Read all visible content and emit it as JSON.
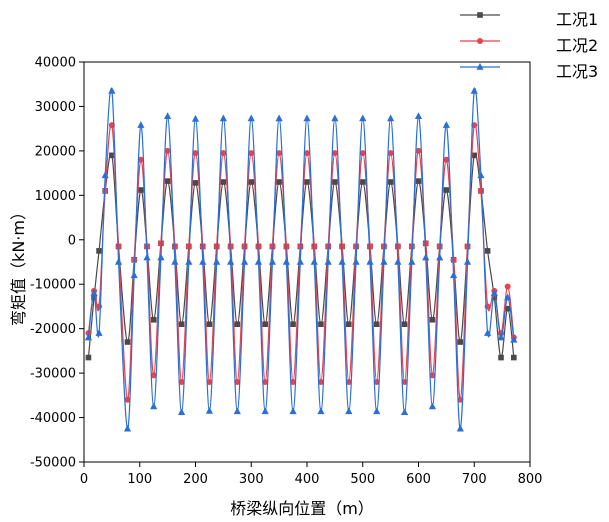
{
  "chart_data": {
    "type": "line",
    "xlabel": "桥梁纵向位置（m）",
    "ylabel": "弯矩值（kN·m）",
    "xlim": [
      0,
      800
    ],
    "ylim": [
      -50000,
      40000
    ],
    "xticks": [
      "0",
      "100",
      "200",
      "300",
      "400",
      "500",
      "600",
      "700",
      "800"
    ],
    "yticks": [
      "-50000",
      "-40000",
      "-30000",
      "-20000",
      "-10000",
      "0",
      "10000",
      "20000",
      "30000",
      "40000"
    ],
    "legend_position": "top-right",
    "grid": false,
    "series": [
      {
        "name": "工况1",
        "color": "#4a4a4a",
        "marker": "square",
        "x": [
          8,
          18,
          27,
          38,
          50,
          62,
          78,
          90,
          102,
          113,
          125,
          138,
          150,
          163,
          175,
          188,
          200,
          213,
          225,
          238,
          250,
          263,
          275,
          288,
          300,
          313,
          325,
          338,
          350,
          363,
          375,
          388,
          400,
          413,
          425,
          438,
          450,
          463,
          475,
          488,
          500,
          513,
          525,
          538,
          550,
          563,
          575,
          588,
          600,
          613,
          625,
          638,
          650,
          663,
          675,
          688,
          700,
          712,
          724,
          736,
          748,
          760,
          771
        ],
        "y": [
          -26500,
          -13000,
          -2500,
          11000,
          19000,
          -1500,
          -23000,
          -4500,
          11200,
          -1500,
          -18000,
          -800,
          13200,
          -1500,
          -19000,
          -1500,
          12800,
          -1500,
          -19000,
          -1500,
          13000,
          -1500,
          -19000,
          -1500,
          13000,
          -1500,
          -19000,
          -1500,
          13000,
          -1500,
          -19000,
          -1500,
          13000,
          -1500,
          -19000,
          -1500,
          13000,
          -1500,
          -19000,
          -1500,
          13000,
          -1500,
          -19000,
          -1500,
          13000,
          -1500,
          -19000,
          -1500,
          13200,
          -800,
          -18000,
          -1500,
          11200,
          -4500,
          -23000,
          -1500,
          19000,
          11000,
          -2500,
          -13000,
          -26500,
          -15500,
          -26500
        ]
      },
      {
        "name": "工况2",
        "color": "#e8424f",
        "marker": "circle",
        "x": [
          8,
          18,
          27,
          38,
          50,
          62,
          78,
          90,
          102,
          113,
          125,
          138,
          150,
          163,
          175,
          188,
          200,
          213,
          225,
          238,
          250,
          263,
          275,
          288,
          300,
          313,
          325,
          338,
          350,
          363,
          375,
          388,
          400,
          413,
          425,
          438,
          450,
          463,
          475,
          488,
          500,
          513,
          525,
          538,
          550,
          563,
          575,
          588,
          600,
          613,
          625,
          638,
          650,
          663,
          675,
          688,
          700,
          712,
          724,
          736,
          748,
          760,
          771
        ],
        "y": [
          -21000,
          -11500,
          -15000,
          11000,
          25800,
          -1500,
          -36000,
          -4500,
          18000,
          -1500,
          -30500,
          -800,
          20000,
          -1500,
          -32000,
          -1500,
          19500,
          -1500,
          -32000,
          -1500,
          19500,
          -1500,
          -32000,
          -1500,
          19500,
          -1500,
          -32000,
          -1500,
          19500,
          -1500,
          -32000,
          -1500,
          19500,
          -1500,
          -32000,
          -1500,
          19500,
          -1500,
          -32000,
          -1500,
          19500,
          -1500,
          -32000,
          -1500,
          19500,
          -1500,
          -32000,
          -1500,
          20000,
          -800,
          -30500,
          -1500,
          18000,
          -4500,
          -36000,
          -1500,
          25800,
          11000,
          -15000,
          -11500,
          -21000,
          -10500,
          -22000
        ]
      },
      {
        "name": "工况3",
        "color": "#2a6fd6",
        "marker": "triangle",
        "x": [
          8,
          18,
          27,
          38,
          50,
          62,
          78,
          90,
          102,
          113,
          125,
          138,
          150,
          163,
          175,
          188,
          200,
          213,
          225,
          238,
          250,
          263,
          275,
          288,
          300,
          313,
          325,
          338,
          350,
          363,
          375,
          388,
          400,
          413,
          425,
          438,
          450,
          463,
          475,
          488,
          500,
          513,
          525,
          538,
          550,
          563,
          575,
          588,
          600,
          613,
          625,
          638,
          650,
          663,
          675,
          688,
          700,
          712,
          724,
          736,
          748,
          760,
          771
        ],
        "y": [
          -22000,
          -12000,
          -21000,
          14500,
          33500,
          -5000,
          -42500,
          -8000,
          25800,
          -4000,
          -37500,
          -4000,
          27800,
          -5000,
          -38800,
          -5000,
          27200,
          -5000,
          -38500,
          -5000,
          27300,
          -5000,
          -38600,
          -5000,
          27300,
          -5000,
          -38600,
          -5000,
          27300,
          -5000,
          -38600,
          -5000,
          27300,
          -5000,
          -38600,
          -5000,
          27300,
          -5000,
          -38600,
          -5000,
          27300,
          -5000,
          -38600,
          -5000,
          27300,
          -5000,
          -38800,
          -5000,
          27800,
          -4000,
          -37500,
          -4000,
          25800,
          -8000,
          -42500,
          -5000,
          33500,
          14500,
          -21000,
          -12000,
          -22000,
          -13000,
          -22500
        ]
      }
    ]
  }
}
